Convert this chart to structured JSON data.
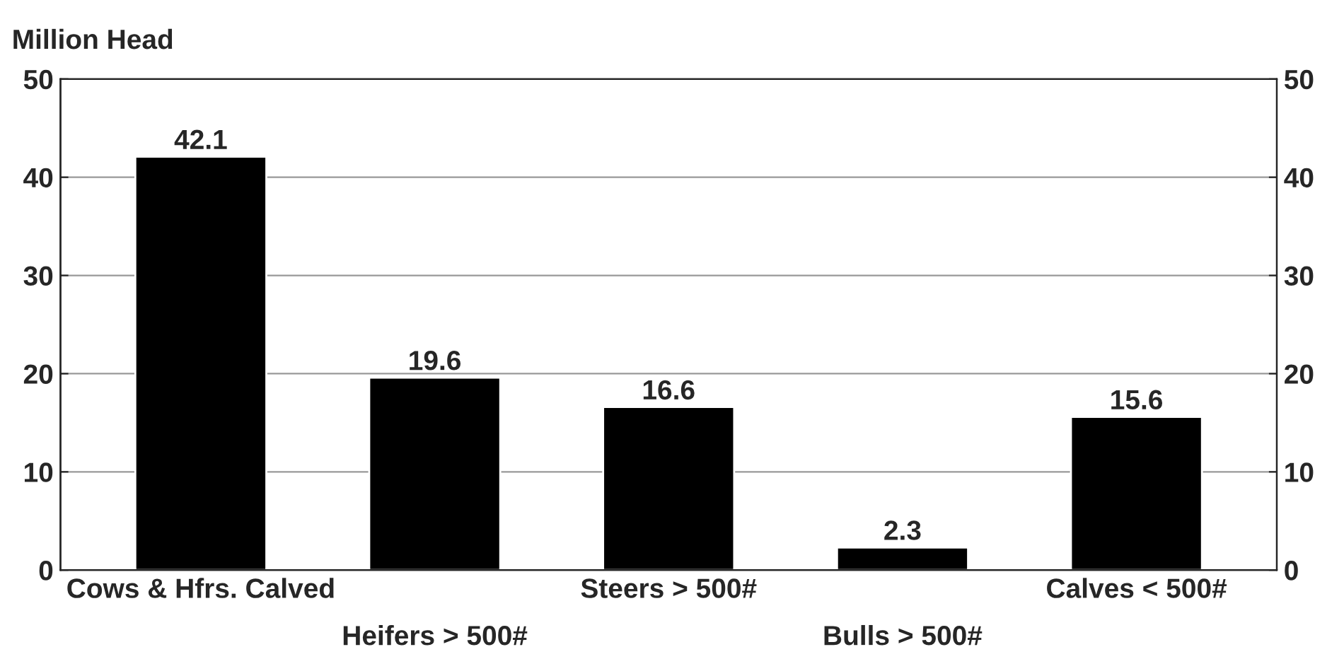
{
  "chart_data": {
    "type": "bar",
    "ylabel": "Million Head",
    "categories": [
      "Cows & Hfrs. Calved",
      "Heifers > 500#",
      "Steers > 500#",
      "Bulls > 500#",
      "Calves < 500#"
    ],
    "values": [
      42.1,
      19.6,
      16.6,
      2.3,
      15.6
    ],
    "color": "#000000",
    "ylim": [
      0,
      50
    ],
    "yticks": [
      0,
      10,
      20,
      30,
      40,
      50
    ],
    "y2lim": [
      0,
      50
    ],
    "y2ticks": [
      0,
      10,
      20,
      30,
      40,
      50
    ],
    "grid": "y",
    "data_labels": true
  }
}
